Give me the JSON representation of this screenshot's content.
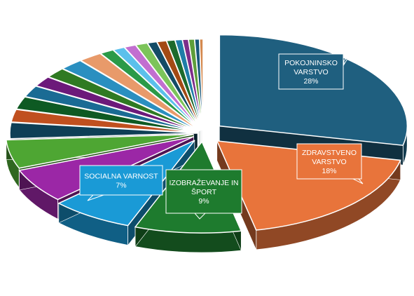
{
  "chart_data": {
    "type": "pie",
    "style": "3d-exploded",
    "title": "",
    "legend": "none",
    "slices": [
      {
        "label": "POKOJNINSKO VARSTVO",
        "value": 28,
        "value_label": "28%",
        "color": "#1f5f7f",
        "labeled": true
      },
      {
        "label": "ZDRAVSTVENO VARSTVO",
        "value": 18,
        "value_label": "18%",
        "color": "#e8743b",
        "labeled": true
      },
      {
        "label": "IZOBRAŽEVANJE IN ŠPORT",
        "value": 9,
        "value_label": "9%",
        "color": "#1e7b2e",
        "labeled": true
      },
      {
        "label": "SOCIALNA VARNOST",
        "value": 7,
        "value_label": "7%",
        "color": "#1a9ad6",
        "labeled": true
      },
      {
        "label": "",
        "value": 6,
        "color": "#9b27a6",
        "labeled": false
      },
      {
        "label": "",
        "value": 5,
        "color": "#4ea633",
        "labeled": false
      },
      {
        "label": "",
        "value": 2.8,
        "color": "#0e3f56",
        "labeled": false
      },
      {
        "label": "",
        "value": 2.2,
        "color": "#c0501f",
        "labeled": false
      },
      {
        "label": "",
        "value": 2.2,
        "color": "#0e5a23",
        "labeled": false
      },
      {
        "label": "",
        "value": 2.0,
        "color": "#1a6b94",
        "labeled": false
      },
      {
        "label": "",
        "value": 1.8,
        "color": "#6c1a7a",
        "labeled": false
      },
      {
        "label": "",
        "value": 1.8,
        "color": "#2f7a22",
        "labeled": false
      },
      {
        "label": "",
        "value": 2.0,
        "color": "#2a8fc0",
        "labeled": false
      },
      {
        "label": "",
        "value": 2.0,
        "color": "#e89a6a",
        "labeled": false
      },
      {
        "label": "",
        "value": 1.2,
        "color": "#2a9a48",
        "labeled": false
      },
      {
        "label": "",
        "value": 1.0,
        "color": "#5bc0eb",
        "labeled": false
      },
      {
        "label": "",
        "value": 1.0,
        "color": "#c26fd0",
        "labeled": false
      },
      {
        "label": "",
        "value": 1.0,
        "color": "#7cc45a",
        "labeled": false
      },
      {
        "label": "",
        "value": 0.8,
        "color": "#134c66",
        "labeled": false
      },
      {
        "label": "",
        "value": 0.8,
        "color": "#a34a14",
        "labeled": false
      },
      {
        "label": "",
        "value": 0.7,
        "color": "#1d6a2c",
        "labeled": false
      },
      {
        "label": "",
        "value": 0.6,
        "color": "#1e7da8",
        "labeled": false
      },
      {
        "label": "",
        "value": 0.5,
        "color": "#7d2d8a",
        "labeled": false
      },
      {
        "label": "",
        "value": 0.5,
        "color": "#5e9e3a",
        "labeled": false
      },
      {
        "label": "",
        "value": 0.4,
        "color": "#17587a",
        "labeled": false
      },
      {
        "label": "",
        "value": 0.3,
        "color": "#d4894f",
        "labeled": false
      }
    ]
  }
}
